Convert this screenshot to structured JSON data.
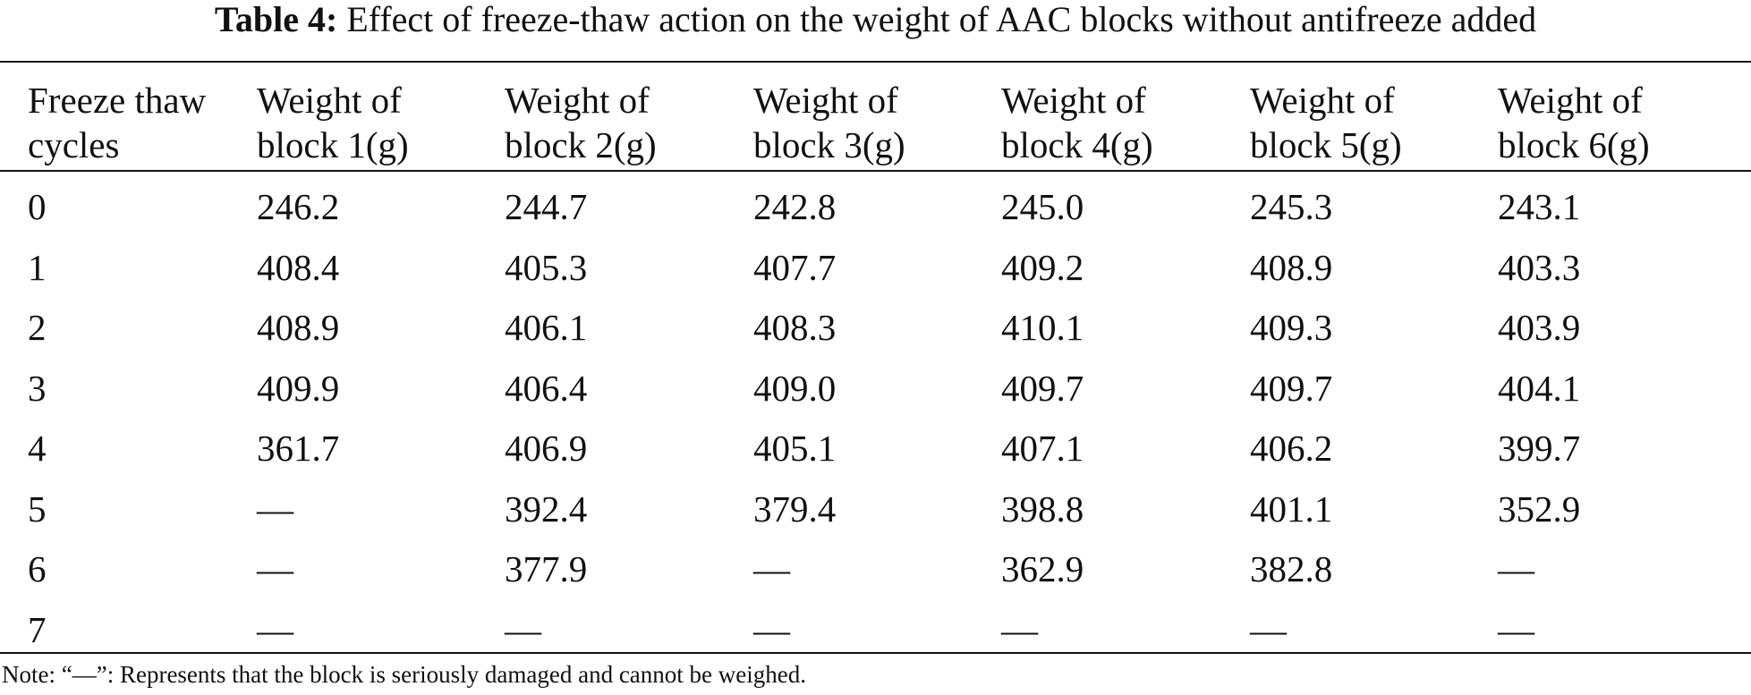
{
  "title": {
    "label": "Table 4:",
    "text": "Effect of freeze-thaw action on the weight of AAC blocks without antifreeze added"
  },
  "table": {
    "header": [
      "Freeze thaw cycles",
      "Weight of block 1(g)",
      "Weight of block 2(g)",
      "Weight of block 3(g)",
      "Weight of block 4(g)",
      "Weight of block 5(g)",
      "Weight of block 6(g)"
    ],
    "rows": [
      [
        "0",
        "246.2",
        "244.7",
        "242.8",
        "245.0",
        "245.3",
        "243.1"
      ],
      [
        "1",
        "408.4",
        "405.3",
        "407.7",
        "409.2",
        "408.9",
        "403.3"
      ],
      [
        "2",
        "408.9",
        "406.1",
        "408.3",
        "410.1",
        "409.3",
        "403.9"
      ],
      [
        "3",
        "409.9",
        "406.4",
        "409.0",
        "409.7",
        "409.7",
        "404.1"
      ],
      [
        "4",
        "361.7",
        "406.9",
        "405.1",
        "407.1",
        "406.2",
        "399.7"
      ],
      [
        "5",
        "—",
        "392.4",
        "379.4",
        "398.8",
        "401.1",
        "352.9"
      ],
      [
        "6",
        "—",
        "377.9",
        "—",
        "362.9",
        "382.8",
        "—"
      ],
      [
        "7",
        "—",
        "—",
        "—",
        "—",
        "—",
        "—"
      ]
    ]
  },
  "note": "Note: “—”: Represents that the block is seriously damaged and cannot be weighed."
}
